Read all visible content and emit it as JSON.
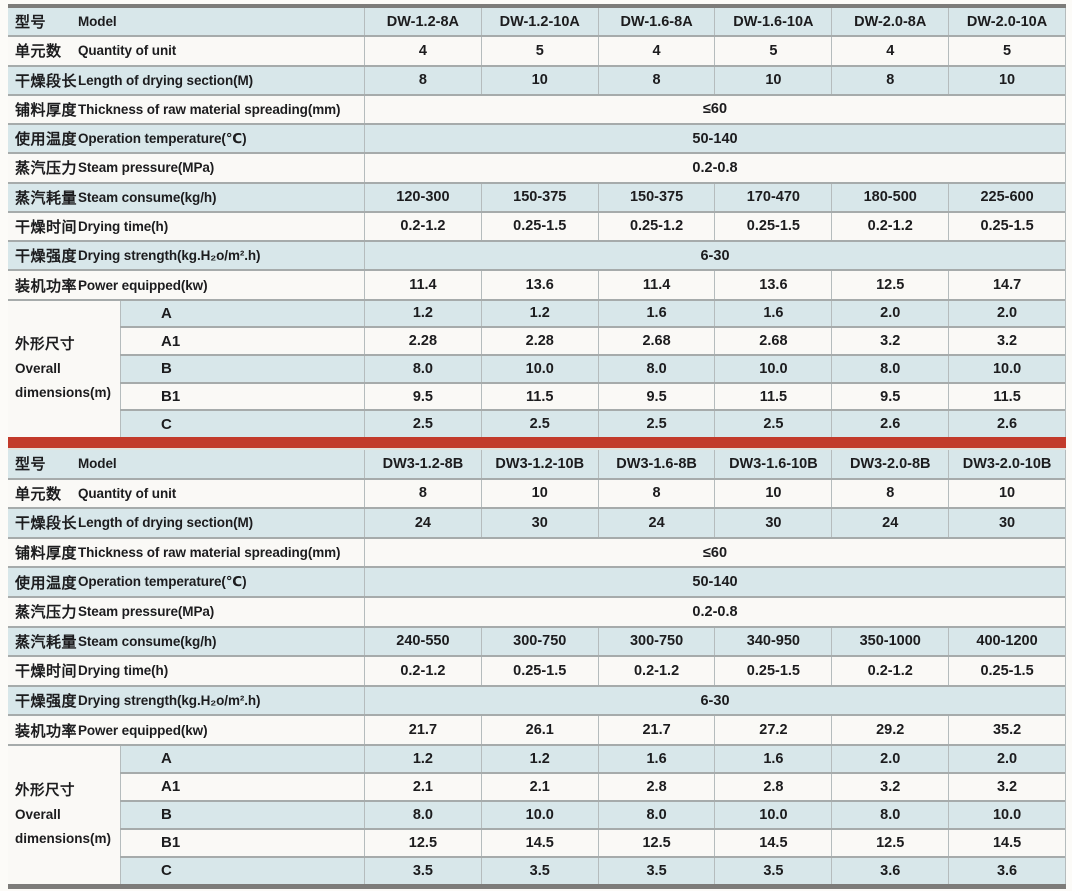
{
  "colors": {
    "page_bg": "#fcfbf8",
    "row_blue": "#d8e7ea",
    "row_white": "#faf9f6",
    "line_h": "#a6abab",
    "line_v": "#b5bcbd",
    "border_dark": "#7d7c7a",
    "divider_red": "#c23a2b",
    "text": "#1c1c1e"
  },
  "tables": [
    {
      "series": "A",
      "spec_rows": [
        {
          "zh": "型号",
          "en": "Model",
          "merged": false,
          "values": [
            "DW-1.2-8A",
            "DW-1.2-10A",
            "DW-1.6-8A",
            "DW-1.6-10A",
            "DW-2.0-8A",
            "DW-2.0-10A"
          ]
        },
        {
          "zh": "单元数",
          "en": "Quantity of unit",
          "merged": false,
          "values": [
            "4",
            "5",
            "4",
            "5",
            "4",
            "5"
          ]
        },
        {
          "zh": "干燥段长",
          "en": "Length of drying section(M)",
          "merged": false,
          "values": [
            "8",
            "10",
            "8",
            "10",
            "8",
            "10"
          ]
        },
        {
          "zh": "铺料厚度",
          "en": "Thickness of raw material spreading(mm)",
          "merged": true,
          "value": "≤60"
        },
        {
          "zh": "使用温度",
          "en": "Operation temperature(℃)",
          "merged": true,
          "value": "50-140"
        },
        {
          "zh": "蒸汽压力",
          "en": "Steam pressure(MPa)",
          "merged": true,
          "value": "0.2-0.8"
        },
        {
          "zh": "蒸汽耗量",
          "en": "Steam consume(kg/h)",
          "merged": false,
          "values": [
            "120-300",
            "150-375",
            "150-375",
            "170-470",
            "180-500",
            "225-600"
          ]
        },
        {
          "zh": "干燥时间",
          "en": "Drying time(h)",
          "merged": false,
          "values": [
            "0.2-1.2",
            "0.25-1.5",
            "0.25-1.2",
            "0.25-1.5",
            "0.2-1.2",
            "0.25-1.5"
          ]
        },
        {
          "zh": "干燥强度",
          "en": "Drying strength(kg.H₂o/m².h)",
          "merged": true,
          "value": "6-30"
        },
        {
          "zh": "装机功率",
          "en": "Power equipped(kw)",
          "merged": false,
          "values": [
            "11.4",
            "13.6",
            "11.4",
            "13.6",
            "12.5",
            "14.7"
          ]
        }
      ],
      "dimensions": {
        "zh": "外形尺寸",
        "en_line1": "Overall",
        "en_line2": "dimensions(m)",
        "rows": [
          {
            "label": "A",
            "values": [
              "1.2",
              "1.2",
              "1.6",
              "1.6",
              "2.0",
              "2.0"
            ]
          },
          {
            "label": "A1",
            "values": [
              "2.28",
              "2.28",
              "2.68",
              "2.68",
              "3.2",
              "3.2"
            ]
          },
          {
            "label": "B",
            "values": [
              "8.0",
              "10.0",
              "8.0",
              "10.0",
              "8.0",
              "10.0"
            ]
          },
          {
            "label": "B1",
            "values": [
              "9.5",
              "11.5",
              "9.5",
              "11.5",
              "9.5",
              "11.5"
            ]
          },
          {
            "label": "C",
            "values": [
              "2.5",
              "2.5",
              "2.5",
              "2.5",
              "2.6",
              "2.6"
            ]
          }
        ]
      }
    },
    {
      "series": "B",
      "spec_rows": [
        {
          "zh": "型号",
          "en": "Model",
          "merged": false,
          "values": [
            "DW3-1.2-8B",
            "DW3-1.2-10B",
            "DW3-1.6-8B",
            "DW3-1.6-10B",
            "DW3-2.0-8B",
            "DW3-2.0-10B"
          ]
        },
        {
          "zh": "单元数",
          "en": "Quantity of unit",
          "merged": false,
          "values": [
            "8",
            "10",
            "8",
            "10",
            "8",
            "10"
          ]
        },
        {
          "zh": "干燥段长",
          "en": "Length of drying section(M)",
          "merged": false,
          "values": [
            "24",
            "30",
            "24",
            "30",
            "24",
            "30"
          ]
        },
        {
          "zh": "铺料厚度",
          "en": "Thickness of raw material spreading(mm)",
          "merged": true,
          "value": "≤60"
        },
        {
          "zh": "使用温度",
          "en": "Operation temperature(℃)",
          "merged": true,
          "value": "50-140"
        },
        {
          "zh": "蒸汽压力",
          "en": "Steam pressure(MPa)",
          "merged": true,
          "value": "0.2-0.8"
        },
        {
          "zh": "蒸汽耗量",
          "en": "Steam consume(kg/h)",
          "merged": false,
          "values": [
            "240-550",
            "300-750",
            "300-750",
            "340-950",
            "350-1000",
            "400-1200"
          ]
        },
        {
          "zh": "干燥时间",
          "en": "Drying time(h)",
          "merged": false,
          "values": [
            "0.2-1.2",
            "0.25-1.5",
            "0.2-1.2",
            "0.25-1.5",
            "0.2-1.2",
            "0.25-1.5"
          ]
        },
        {
          "zh": "干燥强度",
          "en": "Drying strength(kg.H₂o/m².h)",
          "merged": true,
          "value": "6-30"
        },
        {
          "zh": "装机功率",
          "en": "Power equipped(kw)",
          "merged": false,
          "values": [
            "21.7",
            "26.1",
            "21.7",
            "27.2",
            "29.2",
            "35.2"
          ]
        }
      ],
      "dimensions": {
        "zh": "外形尺寸",
        "en_line1": "Overall",
        "en_line2": "dimensions(m)",
        "rows": [
          {
            "label": "A",
            "values": [
              "1.2",
              "1.2",
              "1.6",
              "1.6",
              "2.0",
              "2.0"
            ]
          },
          {
            "label": "A1",
            "values": [
              "2.1",
              "2.1",
              "2.8",
              "2.8",
              "3.2",
              "3.2"
            ]
          },
          {
            "label": "B",
            "values": [
              "8.0",
              "10.0",
              "8.0",
              "10.0",
              "8.0",
              "10.0"
            ]
          },
          {
            "label": "B1",
            "values": [
              "12.5",
              "14.5",
              "12.5",
              "14.5",
              "12.5",
              "14.5"
            ]
          },
          {
            "label": "C",
            "values": [
              "3.5",
              "3.5",
              "3.5",
              "3.5",
              "3.6",
              "3.6"
            ]
          }
        ]
      }
    }
  ]
}
